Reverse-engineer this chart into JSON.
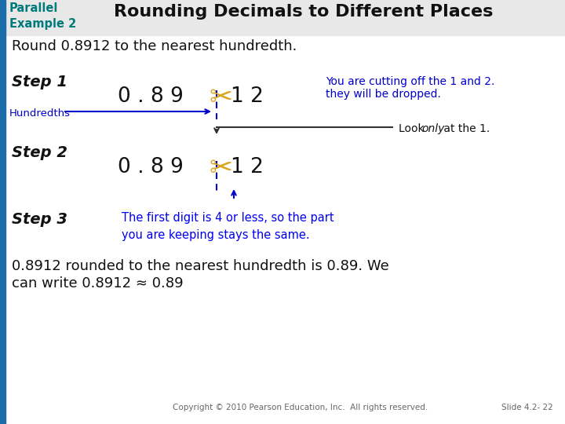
{
  "title": "Rounding Decimals to Different Places",
  "parallel_label": "Parallel\nExample 2",
  "subtitle": "Round 0.8912 to the nearest hundredth.",
  "step1_label": "Step 1",
  "step2_label": "Step 2",
  "step3_label": "Step 3",
  "hundredths_label": "Hundredths",
  "step1_note_line1": "You are cutting off the 1 and 2.",
  "step1_note_line2": "they will be dropped.",
  "step2_note_word1": "Look ",
  "step2_note_word2": "only",
  "step2_note_word3": " at the 1.",
  "step3_note": "The first digit is 4 or less, so the part\nyou are keeping stays the same.",
  "conclusion_line1": "0.8912 rounded to the nearest hundredth is 0.89. We",
  "conclusion_line2": "can write 0.8912 ≈ 0.89",
  "copyright": "Copyright © 2010 Pearson Education, Inc.  All rights reserved.",
  "slide_num": "Slide 4.2- 22",
  "bg_color": "#ffffff",
  "teal_color": "#007A7A",
  "blue_color": "#0000CC",
  "left_bar_color": "#1B6CA8",
  "step3_blue": "#0000EE"
}
